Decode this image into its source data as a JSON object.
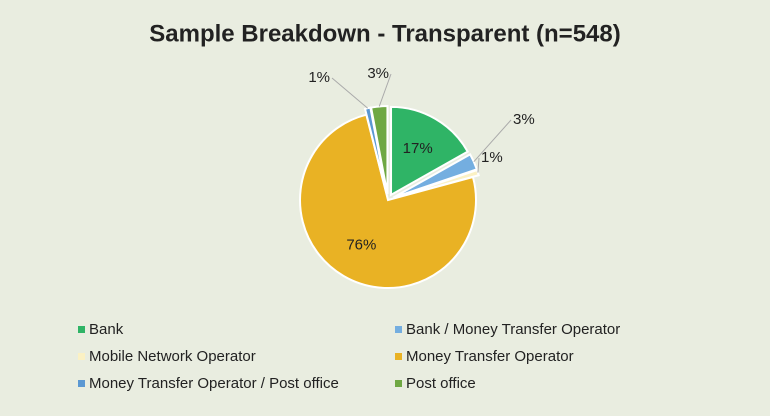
{
  "chart_data": {
    "type": "pie",
    "title": "Sample Breakdown - Transparent (n=548)",
    "categories": [
      "Bank",
      "Bank / Money Transfer Operator",
      "Mobile Network Operator",
      "Money Transfer Operator",
      "Money Transfer Operator / Post office",
      "Post office"
    ],
    "values": [
      17,
      3,
      1,
      76,
      1,
      3
    ],
    "value_labels": [
      "17%",
      "3%",
      "1%",
      "76%",
      "1%",
      "3%"
    ],
    "colors": [
      "#2fb466",
      "#74aee0",
      "#fbf1c4",
      "#e9b224",
      "#5b98d2",
      "#6fa843"
    ],
    "legend": "bottom"
  }
}
